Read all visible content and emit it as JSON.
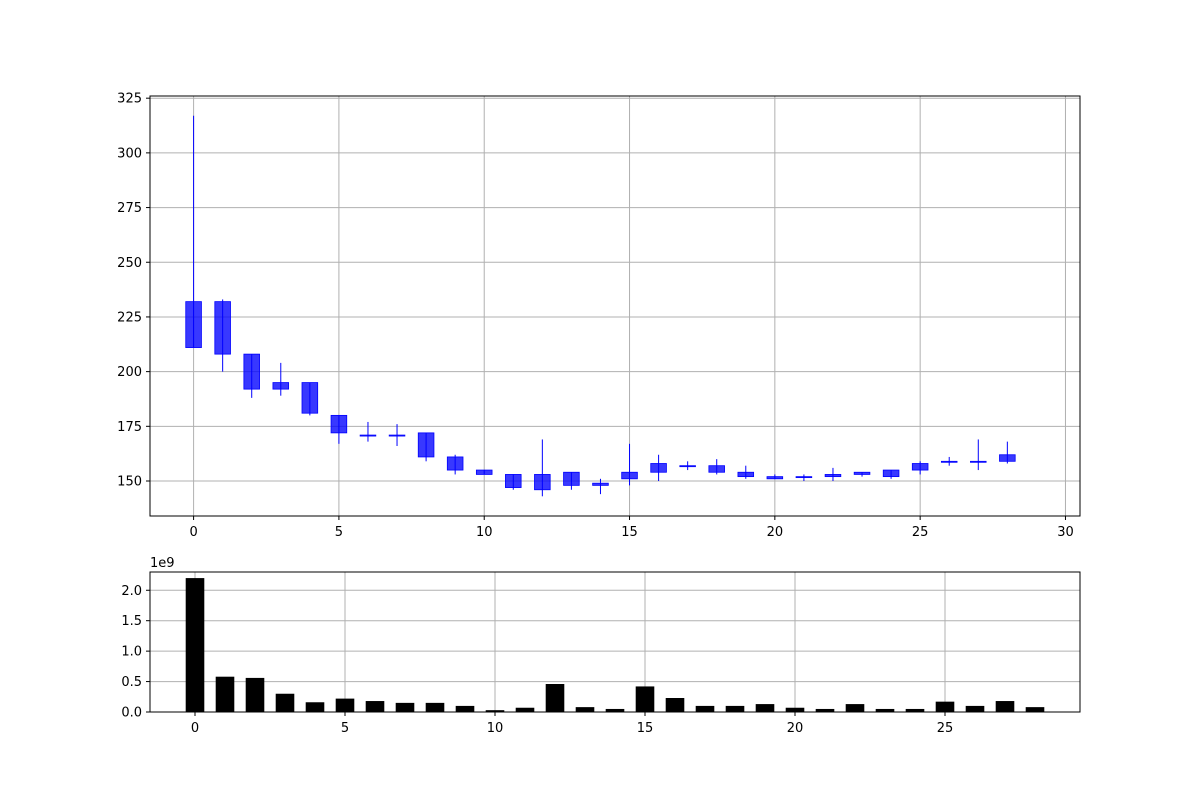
{
  "chart_data": [
    {
      "type": "candlestick",
      "xlim": [
        -1.5,
        30.5
      ],
      "ylim": [
        134,
        326
      ],
      "xticks": [
        0,
        5,
        10,
        15,
        20,
        25,
        30
      ],
      "yticks": [
        150,
        175,
        200,
        225,
        250,
        275,
        300,
        325
      ],
      "grid": true,
      "colors": {
        "up": "#0000ff",
        "down": "#ff0000"
      },
      "candles": [
        {
          "x": 0,
          "open": 211,
          "close": 232,
          "high": 317,
          "low": 211
        },
        {
          "x": 1,
          "open": 208,
          "close": 232,
          "high": 233,
          "low": 200
        },
        {
          "x": 2,
          "open": 192,
          "close": 208,
          "high": 208,
          "low": 188
        },
        {
          "x": 3,
          "open": 192,
          "close": 195,
          "high": 204,
          "low": 189
        },
        {
          "x": 4,
          "open": 181,
          "close": 195,
          "high": 195,
          "low": 180
        },
        {
          "x": 5,
          "open": 172,
          "close": 180,
          "high": 180,
          "low": 167
        },
        {
          "x": 6,
          "open": 171,
          "close": 171,
          "high": 177,
          "low": 168
        },
        {
          "x": 7,
          "open": 171,
          "close": 171,
          "high": 176,
          "low": 166
        },
        {
          "x": 8,
          "open": 161,
          "close": 172,
          "high": 172,
          "low": 159
        },
        {
          "x": 9,
          "open": 155,
          "close": 161,
          "high": 162,
          "low": 153
        },
        {
          "x": 10,
          "open": 153,
          "close": 155,
          "high": 155,
          "low": 153
        },
        {
          "x": 11,
          "open": 147,
          "close": 153,
          "high": 153,
          "low": 146
        },
        {
          "x": 12,
          "open": 146,
          "close": 153,
          "high": 169,
          "low": 143
        },
        {
          "x": 13,
          "open": 148,
          "close": 154,
          "high": 154,
          "low": 146
        },
        {
          "x": 14,
          "open": 148,
          "close": 149,
          "high": 151,
          "low": 144
        },
        {
          "x": 15,
          "open": 151,
          "close": 154,
          "high": 167,
          "low": 148
        },
        {
          "x": 16,
          "open": 154,
          "close": 158,
          "high": 162,
          "low": 150
        },
        {
          "x": 17,
          "open": 157,
          "close": 157,
          "high": 159,
          "low": 155
        },
        {
          "x": 18,
          "open": 154,
          "close": 157,
          "high": 160,
          "low": 153
        },
        {
          "x": 19,
          "open": 152,
          "close": 154,
          "high": 157,
          "low": 151
        },
        {
          "x": 20,
          "open": 151,
          "close": 152,
          "high": 153,
          "low": 151
        },
        {
          "x": 21,
          "open": 152,
          "close": 152,
          "high": 153,
          "low": 150
        },
        {
          "x": 22,
          "open": 152,
          "close": 153,
          "high": 156,
          "low": 150
        },
        {
          "x": 23,
          "open": 153,
          "close": 154,
          "high": 154,
          "low": 152
        },
        {
          "x": 24,
          "open": 152,
          "close": 155,
          "high": 155,
          "low": 151
        },
        {
          "x": 25,
          "open": 155,
          "close": 158,
          "high": 159,
          "low": 153
        },
        {
          "x": 26,
          "open": 159,
          "close": 159,
          "high": 161,
          "low": 157
        },
        {
          "x": 27,
          "open": 159,
          "close": 159,
          "high": 169,
          "low": 155
        },
        {
          "x": 28,
          "open": 159,
          "close": 162,
          "high": 168,
          "low": 158
        }
      ]
    },
    {
      "type": "bar",
      "xlim": [
        -1.5,
        29.5
      ],
      "ylim": [
        0,
        2.3
      ],
      "xticks": [
        0,
        5,
        10,
        15,
        20,
        25
      ],
      "yticks": [
        0.0,
        0.5,
        1.0,
        1.5,
        2.0
      ],
      "ytick_labels": [
        "0.0",
        "0.5",
        "1.0",
        "1.5",
        "2.0"
      ],
      "offset_label": "1e9",
      "grid": true,
      "bar_color": "#000000",
      "x": [
        0,
        1,
        2,
        3,
        4,
        5,
        6,
        7,
        8,
        9,
        10,
        11,
        12,
        13,
        14,
        15,
        16,
        17,
        18,
        19,
        20,
        21,
        22,
        23,
        24,
        25,
        26,
        27,
        28
      ],
      "values": [
        2.2,
        0.58,
        0.56,
        0.3,
        0.16,
        0.22,
        0.18,
        0.15,
        0.15,
        0.1,
        0.03,
        0.07,
        0.46,
        0.08,
        0.05,
        0.42,
        0.23,
        0.1,
        0.1,
        0.13,
        0.07,
        0.05,
        0.13,
        0.05,
        0.05,
        0.17,
        0.1,
        0.18,
        0.08
      ]
    }
  ]
}
